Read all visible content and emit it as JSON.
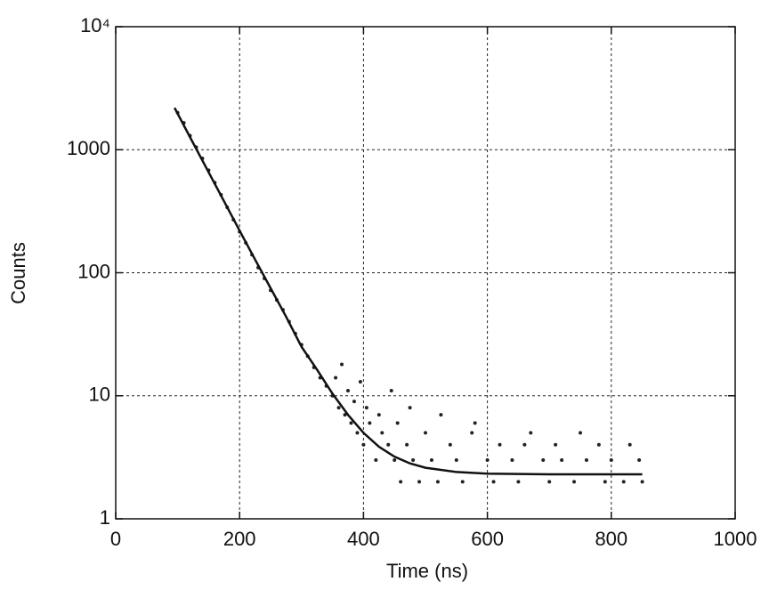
{
  "chart_data": {
    "type": "scatter",
    "x_label": "Time (ns)",
    "y_label": "Counts",
    "xlim": [
      0,
      1000
    ],
    "xticks": [
      0,
      200,
      400,
      600,
      800,
      1000
    ],
    "ylim": [
      1,
      10000
    ],
    "yticks": [
      1,
      10,
      100,
      1000,
      {
        "value": 10000,
        "label": "10⁴"
      }
    ],
    "ylog": true,
    "grid": true,
    "series": [
      {
        "type": "scatter",
        "color": "#222",
        "x": [
          100,
          110,
          120,
          130,
          140,
          150,
          160,
          170,
          180,
          190,
          200,
          210,
          220,
          230,
          240,
          250,
          260,
          270,
          280,
          290,
          300,
          310,
          320,
          330,
          340,
          350,
          355,
          360,
          365,
          370,
          375,
          380,
          385,
          390,
          395,
          400,
          405,
          410,
          420,
          425,
          430,
          440,
          445,
          450,
          455,
          460,
          470,
          475,
          480,
          490,
          500,
          510,
          520,
          525,
          540,
          550,
          560,
          575,
          580,
          600,
          610,
          620,
          640,
          650,
          660,
          670,
          690,
          700,
          710,
          720,
          740,
          750,
          760,
          780,
          790,
          800,
          820,
          830,
          845,
          850
        ],
        "values": [
          2000,
          1650,
          1300,
          1050,
          850,
          680,
          540,
          430,
          340,
          270,
          215,
          175,
          140,
          110,
          90,
          72,
          60,
          50,
          40,
          32,
          26,
          21,
          17,
          14,
          12,
          10,
          14,
          8,
          18,
          7,
          11,
          6,
          9,
          5,
          13,
          4,
          8,
          6,
          3,
          7,
          5,
          4,
          11,
          3,
          6,
          2,
          4,
          8,
          3,
          2,
          5,
          3,
          2,
          7,
          4,
          3,
          2,
          5,
          6,
          3,
          2,
          4,
          3,
          2,
          4,
          5,
          3,
          2,
          4,
          3,
          2,
          5,
          3,
          4,
          2,
          3,
          2,
          4,
          3,
          2
        ]
      },
      {
        "type": "line",
        "color": "#111",
        "x": [
          95,
          125,
          150,
          175,
          200,
          225,
          250,
          275,
          300,
          325,
          350,
          375,
          400,
          425,
          450,
          475,
          500,
          550,
          600,
          700,
          850
        ],
        "values": [
          2192,
          1133,
          656,
          380,
          220,
          128,
          75,
          44,
          25,
          16.3,
          10.4,
          7.0,
          5.0,
          3.85,
          3.2,
          2.82,
          2.6,
          2.4,
          2.33,
          2.3,
          2.3
        ]
      }
    ]
  }
}
